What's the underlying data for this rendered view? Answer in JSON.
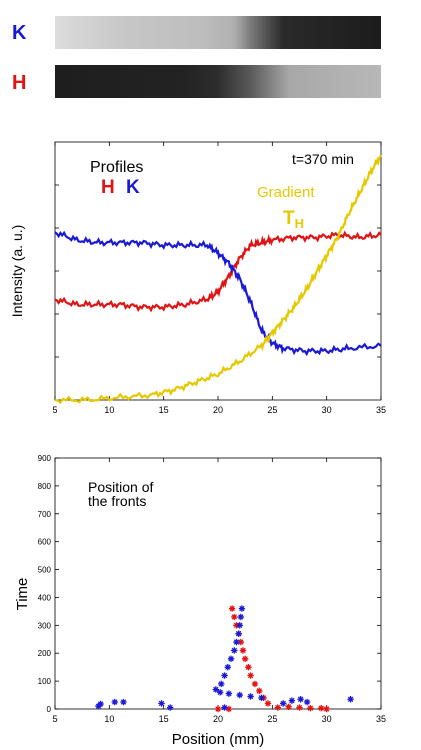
{
  "strips": {
    "k_label": "K",
    "h_label": "H",
    "k_color": "#1a1ad6",
    "h_color": "#e01414"
  },
  "colors": {
    "red": "#e01414",
    "blue": "#1a1ad6",
    "gold": "#e6c800"
  },
  "chart_data": [
    {
      "type": "line",
      "title": "",
      "ylabel": "Intensity (a. u.)",
      "xlabel": "",
      "xlim": [
        5,
        35
      ],
      "ylim": [
        0,
        1
      ],
      "x_ticks": [
        5,
        10,
        15,
        20,
        25,
        30,
        35
      ],
      "x_tick_labels": [
        "5",
        "10",
        "15",
        "20",
        "25",
        "30",
        "35"
      ],
      "annotations": {
        "profiles": "Profiles",
        "profiles_h": "H",
        "profiles_k": "K",
        "time": "t=370 min",
        "gradient": "Gradient",
        "gradient_t": "T",
        "gradient_sub": "H"
      },
      "series": [
        {
          "key": "H",
          "color": "#e01414",
          "x": [
            5,
            7,
            9,
            11,
            13,
            15,
            17,
            19,
            20,
            21,
            22,
            23,
            24,
            25,
            27,
            29,
            31,
            33,
            35
          ],
          "y": [
            0.39,
            0.37,
            0.37,
            0.37,
            0.36,
            0.36,
            0.37,
            0.39,
            0.42,
            0.48,
            0.55,
            0.6,
            0.61,
            0.62,
            0.63,
            0.63,
            0.64,
            0.63,
            0.64
          ]
        },
        {
          "key": "K",
          "color": "#1a1ad6",
          "x": [
            5,
            7,
            9,
            11,
            13,
            15,
            17,
            19,
            20,
            21,
            22,
            23,
            24,
            25,
            26,
            28,
            30,
            32,
            35
          ],
          "y": [
            0.65,
            0.62,
            0.61,
            0.61,
            0.61,
            0.6,
            0.6,
            0.6,
            0.57,
            0.53,
            0.47,
            0.38,
            0.27,
            0.22,
            0.2,
            0.19,
            0.19,
            0.2,
            0.21
          ]
        },
        {
          "key": "T_H",
          "color": "#e6c800",
          "x": [
            5,
            8,
            11,
            14,
            16,
            18,
            20,
            22,
            24,
            25,
            26,
            27,
            28,
            29,
            30,
            31,
            32,
            33,
            34,
            35
          ],
          "y": [
            0.0,
            0.0,
            0.01,
            0.02,
            0.04,
            0.07,
            0.1,
            0.15,
            0.21,
            0.26,
            0.31,
            0.36,
            0.42,
            0.49,
            0.56,
            0.63,
            0.72,
            0.8,
            0.88,
            0.95
          ]
        }
      ]
    },
    {
      "type": "scatter",
      "title": "",
      "xlabel": "Position (mm)",
      "ylabel": "Time",
      "xlim": [
        5,
        35
      ],
      "ylim": [
        0,
        900
      ],
      "x_ticks": [
        5,
        10,
        15,
        20,
        25,
        30,
        35
      ],
      "x_tick_labels": [
        "5",
        "10",
        "15",
        "20",
        "25",
        "30",
        "35"
      ],
      "y_ticks": [
        0,
        100,
        200,
        300,
        400,
        500,
        600,
        700,
        800,
        900
      ],
      "y_tick_labels": [
        "0",
        "100",
        "200",
        "300",
        "400",
        "500",
        "600",
        "700",
        "800",
        "900"
      ],
      "annotation_line1": "Position of",
      "annotation_line2": "the fronts",
      "series": [
        {
          "key": "H",
          "color": "#e01414",
          "points": [
            [
              21.3,
              360
            ],
            [
              21.5,
              330
            ],
            [
              21.7,
              300
            ],
            [
              21.9,
              270
            ],
            [
              22.1,
              240
            ],
            [
              22.3,
              210
            ],
            [
              22.5,
              180
            ],
            [
              22.8,
              150
            ],
            [
              23.0,
              120
            ],
            [
              23.4,
              90
            ],
            [
              23.8,
              65
            ],
            [
              24.2,
              40
            ],
            [
              24.6,
              20
            ],
            [
              20.0,
              0
            ],
            [
              21.0,
              0
            ],
            [
              25.5,
              5
            ],
            [
              26.5,
              8
            ],
            [
              27.5,
              5
            ],
            [
              28.5,
              3
            ],
            [
              29.5,
              3
            ],
            [
              30.0,
              0
            ]
          ]
        },
        {
          "key": "K",
          "color": "#1a1ad6",
          "points": [
            [
              22.2,
              360
            ],
            [
              22.1,
              330
            ],
            [
              22.0,
              300
            ],
            [
              21.9,
              270
            ],
            [
              21.7,
              240
            ],
            [
              21.5,
              210
            ],
            [
              21.2,
              180
            ],
            [
              20.9,
              150
            ],
            [
              20.6,
              120
            ],
            [
              20.3,
              90
            ],
            [
              19.8,
              70
            ],
            [
              20.2,
              60
            ],
            [
              21.0,
              55
            ],
            [
              22.0,
              50
            ],
            [
              23.0,
              45
            ],
            [
              24.0,
              40
            ],
            [
              9.0,
              10
            ],
            [
              9.2,
              18
            ],
            [
              10.5,
              25
            ],
            [
              11.3,
              25
            ],
            [
              14.8,
              20
            ],
            [
              15.6,
              5
            ],
            [
              20.6,
              5
            ],
            [
              26.0,
              20
            ],
            [
              26.8,
              30
            ],
            [
              27.6,
              35
            ],
            [
              28.2,
              25
            ],
            [
              32.2,
              35
            ]
          ]
        }
      ]
    }
  ]
}
